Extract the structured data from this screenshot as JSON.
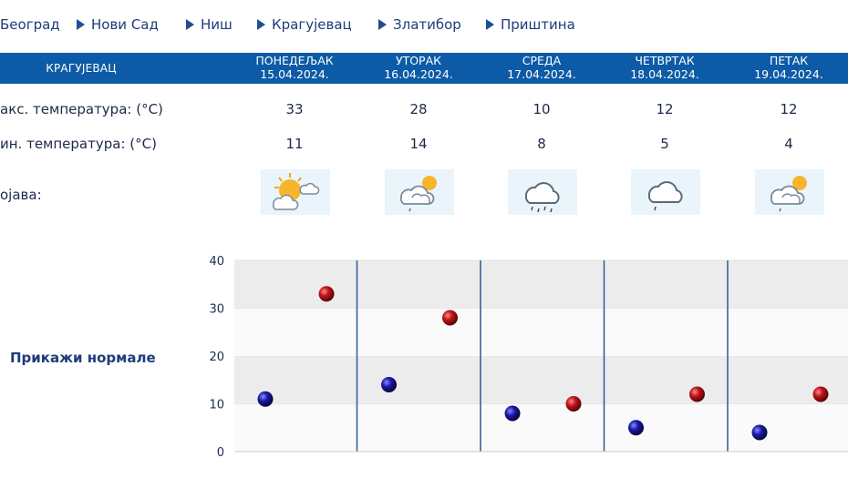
{
  "nav": {
    "cities": [
      "Београд",
      "Нови Сад",
      "Ниш",
      "Крагујевац",
      "Златибор",
      "Приштина"
    ]
  },
  "table": {
    "city": "КРАГУЈЕВАЦ",
    "days": [
      {
        "name": "ПОНЕДЕЉАК",
        "date": "15.04.2024.",
        "max": "33",
        "min": "11",
        "icon": "sun-cloud-icon"
      },
      {
        "name": "УТОРАК",
        "date": "16.04.2024.",
        "max": "28",
        "min": "14",
        "icon": "cloud-sun-drizzle-icon"
      },
      {
        "name": "СРЕДА",
        "date": "17.04.2024.",
        "max": "10",
        "min": "8",
        "icon": "cloud-rain-icon"
      },
      {
        "name": "ЧЕТВРТАК",
        "date": "18.04.2024.",
        "max": "12",
        "min": "5",
        "icon": "cloud-drizzle-icon"
      },
      {
        "name": "ПЕТАК",
        "date": "19.04.2024.",
        "max": "12",
        "min": "4",
        "icon": "cloud-sun-drizzle-icon"
      }
    ],
    "labels": {
      "max": "акс. температура: (°C)",
      "min": "ин. температура: (°C)",
      "weather": "ојава:"
    }
  },
  "normals_link": "Прикажи нормале",
  "colors": {
    "header_bg": "#0d5ba6",
    "max_marker": "#c0141b",
    "min_marker": "#1a1aa8",
    "icon_bg": "#eaf5fb"
  },
  "chart_data": {
    "type": "scatter",
    "categories": [
      "ПОНЕДЕЉАК",
      "УТОРАК",
      "СРЕДА",
      "ЧЕТВРТАК",
      "ПЕТАК"
    ],
    "series": [
      {
        "values": [
          11,
          14,
          8,
          5,
          4
        ]
      },
      {
        "values": [
          33,
          28,
          10,
          12,
          12
        ]
      }
    ],
    "yticks": [
      "0",
      "10",
      "20",
      "30",
      "40"
    ],
    "ylim": [
      0,
      40
    ],
    "grid": true,
    "legend": "none"
  }
}
